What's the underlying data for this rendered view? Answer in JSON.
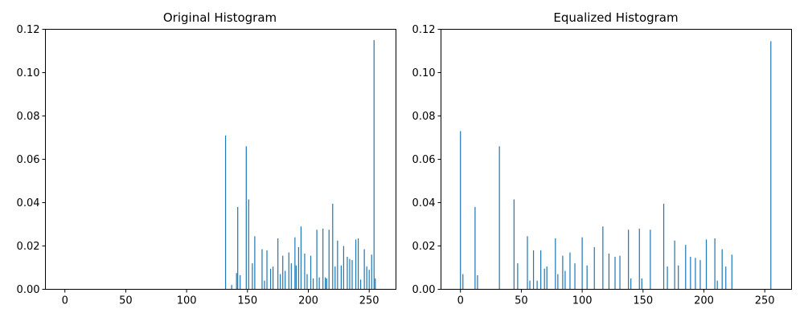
{
  "chart_data": [
    {
      "type": "bar",
      "title": "Original Histogram",
      "xlabel": "",
      "ylabel": "",
      "xlim": [
        -16,
        272
      ],
      "ylim": [
        0,
        0.12
      ],
      "xticks": [
        0,
        50,
        100,
        150,
        200,
        250
      ],
      "yticks": [
        0.0,
        0.02,
        0.04,
        0.06,
        0.08,
        0.1,
        0.12
      ],
      "ytick_labels": [
        "0.00",
        "0.02",
        "0.04",
        "0.06",
        "0.08",
        "0.10",
        "0.12"
      ],
      "color": "#1f77b4",
      "grid": false,
      "x": [
        132,
        137,
        141,
        142,
        144,
        149,
        151,
        154,
        156,
        162,
        164,
        166,
        169,
        171,
        175,
        177,
        179,
        181,
        184,
        186,
        189,
        190,
        192,
        194,
        197,
        199,
        202,
        204,
        207,
        209,
        212,
        214,
        215,
        217,
        220,
        222,
        224,
        227,
        229,
        232,
        234,
        236,
        239,
        241,
        243,
        246,
        248,
        250,
        252,
        254,
        255
      ],
      "values": [
        0.071,
        0.002,
        0.0075,
        0.038,
        0.0065,
        0.066,
        0.0415,
        0.012,
        0.0245,
        0.0185,
        0.004,
        0.018,
        0.0095,
        0.0105,
        0.0235,
        0.007,
        0.0155,
        0.0085,
        0.017,
        0.012,
        0.024,
        0.011,
        0.0195,
        0.029,
        0.0165,
        0.007,
        0.0155,
        0.005,
        0.0275,
        0.0055,
        0.028,
        0.0055,
        0.005,
        0.0275,
        0.0395,
        0.0105,
        0.0225,
        0.011,
        0.02,
        0.015,
        0.014,
        0.0135,
        0.023,
        0.0235,
        0.0045,
        0.0185,
        0.0105,
        0.009,
        0.016,
        0.115,
        0.005
      ]
    },
    {
      "type": "bar",
      "title": "Equalized Histogram",
      "xlabel": "",
      "ylabel": "",
      "xlim": [
        -16,
        272
      ],
      "ylim": [
        0,
        0.12
      ],
      "xticks": [
        0,
        50,
        100,
        150,
        200,
        250
      ],
      "yticks": [
        0.0,
        0.02,
        0.04,
        0.06,
        0.08,
        0.1,
        0.12
      ],
      "ytick_labels": [
        "0.00",
        "0.02",
        "0.04",
        "0.06",
        "0.08",
        "0.10",
        "0.12"
      ],
      "color": "#1f77b4",
      "grid": false,
      "x": [
        0,
        2,
        12,
        14,
        32,
        44,
        47,
        55,
        57,
        60,
        63,
        66,
        69,
        71,
        78,
        80,
        84,
        86,
        90,
        94,
        100,
        104,
        110,
        117,
        122,
        127,
        131,
        138,
        140,
        147,
        149,
        156,
        167,
        170,
        176,
        179,
        185,
        189,
        193,
        197,
        202,
        209,
        211,
        215,
        218,
        223,
        255
      ],
      "values": [
        0.073,
        0.007,
        0.038,
        0.0065,
        0.066,
        0.0415,
        0.012,
        0.0245,
        0.004,
        0.018,
        0.004,
        0.018,
        0.0095,
        0.0105,
        0.0235,
        0.007,
        0.0155,
        0.0085,
        0.017,
        0.012,
        0.024,
        0.011,
        0.0195,
        0.029,
        0.0165,
        0.015,
        0.0155,
        0.0275,
        0.005,
        0.028,
        0.005,
        0.0275,
        0.0395,
        0.0105,
        0.0225,
        0.011,
        0.0205,
        0.015,
        0.0145,
        0.0135,
        0.023,
        0.0235,
        0.004,
        0.0185,
        0.0105,
        0.016,
        0.1145
      ]
    }
  ]
}
